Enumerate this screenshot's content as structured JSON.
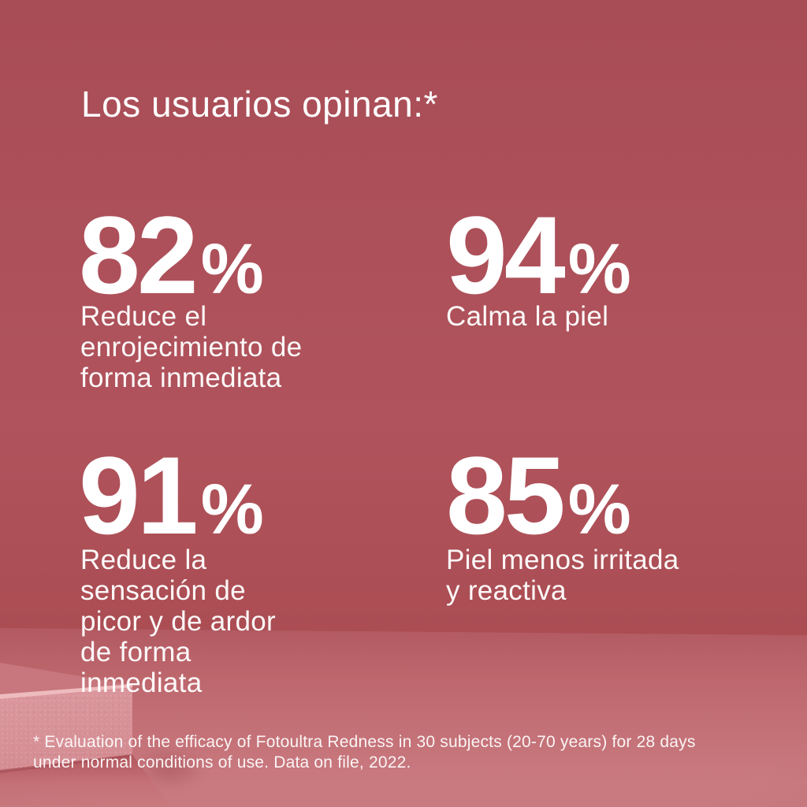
{
  "title": "Los usuarios opinan:*",
  "stats": [
    {
      "value": "82",
      "unit": "%",
      "caption": "Reduce el\nenrojecimiento de\nforma inmediata"
    },
    {
      "value": "94",
      "unit": "%",
      "caption": "Calma la piel"
    },
    {
      "value": "91",
      "unit": "%",
      "caption": "Reduce la\nsensación de\npicor y de ardor\nde forma\ninmediata"
    },
    {
      "value": "85",
      "unit": "%",
      "caption": "Piel menos irritada\ny reactiva"
    }
  ],
  "footnote": "* Evaluation of the efficacy of Fotoultra Redness in 30 subjects (20-70 years) for 28 days\nunder normal conditions of use. Data on file, 2022.",
  "colors": {
    "wall-top": "#a84c56",
    "wall-mid": "#b0535c",
    "wall-bottom": "#ab4d53",
    "floor-top": "#b25961",
    "floor-mid": "#bd676d",
    "floor-bottom": "#c97a80",
    "pedestal-top-face": "#c7777d",
    "pedestal-edge-highlight": "#eebbbe",
    "pedestal-front-face": "#dc999f",
    "pedestal-seam": "#9e454d",
    "pedestal-shadow": "#c57177",
    "text": "#ffffff"
  },
  "chart_data": {
    "type": "table",
    "title": "Los usuarios opinan:*",
    "categories": [
      "Reduce el enrojecimiento de forma inmediata",
      "Calma la piel",
      "Reduce la sensación de picor y de ardor de forma inmediata",
      "Piel menos irritada y reactiva"
    ],
    "values": [
      82,
      94,
      91,
      85
    ],
    "unit": "%",
    "legend_position": "none",
    "footnote": "* Evaluation of the efficacy of Fotoultra Redness in 30 subjects (20-70 years) for 28 days under normal conditions of use. Data on file, 2022."
  }
}
